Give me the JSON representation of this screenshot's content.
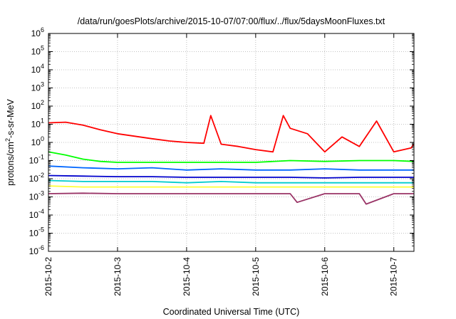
{
  "chart_data": {
    "type": "line",
    "title": "/data/run/goesPlots/archive/2015-10-07/07:00/flux/../flux/5daysMoonFluxes.txt",
    "xlabel": "Coordinated Universal Time (UTC)",
    "ylabel": {
      "base": "protons/cm",
      "sup": "2",
      "rest": "-s-sr-MeV"
    },
    "yscale": "log",
    "ylim": [
      1e-06,
      1000000.0
    ],
    "yticks": [
      {
        "base": "10",
        "exp": "6"
      },
      {
        "base": "10",
        "exp": "5"
      },
      {
        "base": "10",
        "exp": "4"
      },
      {
        "base": "10",
        "exp": "3"
      },
      {
        "base": "10",
        "exp": "2"
      },
      {
        "base": "10",
        "exp": "1"
      },
      {
        "base": "10",
        "exp": "0"
      },
      {
        "base": "10",
        "exp": "-1"
      },
      {
        "base": "10",
        "exp": "-2"
      },
      {
        "base": "10",
        "exp": "-3"
      },
      {
        "base": "10",
        "exp": "-4"
      },
      {
        "base": "10",
        "exp": "-5"
      },
      {
        "base": "10",
        "exp": "-6"
      }
    ],
    "xlim": [
      "2015-10-02 00:00",
      "2015-10-07 07:00"
    ],
    "xticks": [
      "2015-10-2",
      "2015-10-3",
      "2015-10-4",
      "2015-10-5",
      "2015-10-6",
      "2015-10-7"
    ],
    "grid": true,
    "legend": "none",
    "series": [
      {
        "color": "#ff0000",
        "x": [
          0,
          0.25,
          0.5,
          0.75,
          1.0,
          1.25,
          1.5,
          1.75,
          2.0,
          2.25,
          2.35,
          2.5,
          2.75,
          3.0,
          3.25,
          3.4,
          3.5,
          3.75,
          4.0,
          4.25,
          4.5,
          4.75,
          5.0,
          5.25,
          5.29
        ],
        "y": [
          12,
          13,
          9,
          5,
          3,
          2.2,
          1.6,
          1.2,
          1.0,
          0.9,
          30,
          0.8,
          0.6,
          0.4,
          0.3,
          30,
          6,
          3,
          0.3,
          2,
          0.6,
          15,
          0.3,
          0.5,
          0.8
        ]
      },
      {
        "color": "#00ff00",
        "x": [
          0,
          0.25,
          0.5,
          0.75,
          1.0,
          1.5,
          2.0,
          2.5,
          3.0,
          3.5,
          4.0,
          4.5,
          5.0,
          5.29
        ],
        "y": [
          0.3,
          0.2,
          0.12,
          0.09,
          0.08,
          0.08,
          0.08,
          0.08,
          0.08,
          0.1,
          0.09,
          0.1,
          0.1,
          0.09
        ]
      },
      {
        "color": "#0066ff",
        "x": [
          0,
          0.5,
          1.0,
          1.5,
          2.0,
          2.5,
          3.0,
          3.5,
          4.0,
          4.5,
          5.0,
          5.29
        ],
        "y": [
          0.05,
          0.04,
          0.035,
          0.04,
          0.03,
          0.035,
          0.03,
          0.03,
          0.035,
          0.03,
          0.03,
          0.03
        ]
      },
      {
        "color": "#0000cc",
        "x": [
          0,
          0.5,
          1.0,
          1.5,
          2.0,
          2.5,
          3.0,
          3.5,
          4.0,
          4.5,
          5.0,
          5.29
        ],
        "y": [
          0.015,
          0.014,
          0.013,
          0.013,
          0.012,
          0.012,
          0.012,
          0.012,
          0.011,
          0.012,
          0.012,
          0.012
        ]
      },
      {
        "color": "#00cccc",
        "x": [
          0,
          0.5,
          1.0,
          1.5,
          2.0,
          2.5,
          3.0,
          3.5,
          4.0,
          4.5,
          5.0,
          5.29
        ],
        "y": [
          0.008,
          0.007,
          0.007,
          0.007,
          0.006,
          0.007,
          0.006,
          0.006,
          0.006,
          0.006,
          0.006,
          0.006
        ]
      },
      {
        "color": "#ffff33",
        "x": [
          0,
          0.5,
          1.0,
          1.5,
          2.0,
          2.5,
          3.0,
          3.5,
          4.0,
          4.5,
          5.0,
          5.29
        ],
        "y": [
          0.004,
          0.0035,
          0.0035,
          0.0035,
          0.0035,
          0.0035,
          0.0035,
          0.0035,
          0.0035,
          0.0035,
          0.0035,
          0.0035
        ]
      },
      {
        "color": "#993366",
        "x": [
          0,
          0.5,
          1.0,
          1.5,
          2.0,
          2.5,
          3.0,
          3.5,
          3.6,
          4.0,
          4.5,
          4.6,
          5.0,
          5.29
        ],
        "y": [
          0.0015,
          0.0016,
          0.0015,
          0.0015,
          0.0015,
          0.0015,
          0.0015,
          0.0015,
          0.0005,
          0.0015,
          0.0015,
          0.0004,
          0.0015,
          0.0015
        ]
      }
    ]
  }
}
